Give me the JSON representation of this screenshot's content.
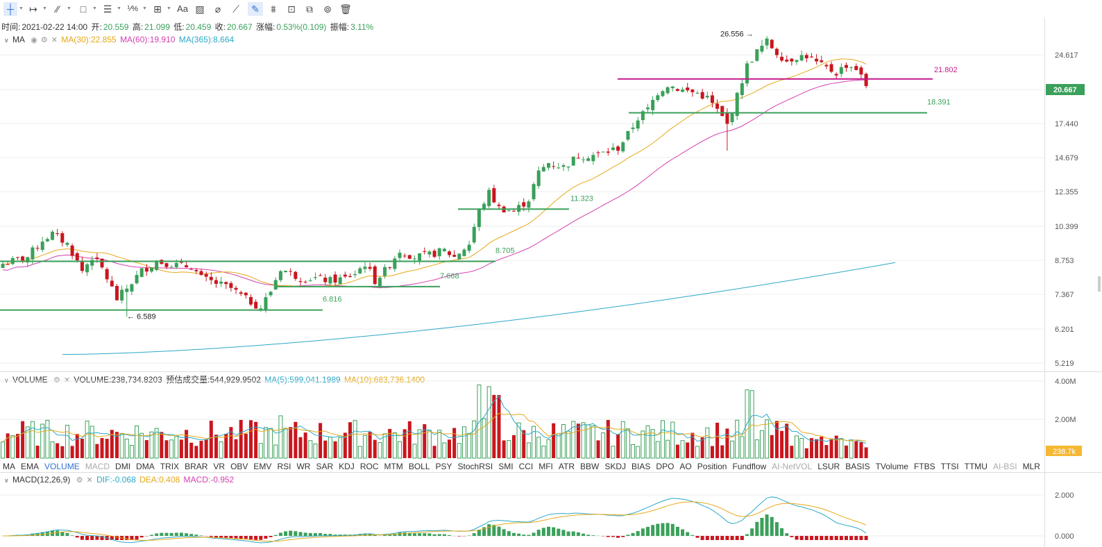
{
  "toolbar": {
    "icons": [
      "crosshair-tool-icon",
      "horizontal-ray-icon",
      "trend-line-icon",
      "rectangle-icon",
      "parallel-lines-icon",
      "fibonacci-icon",
      "measure-icon",
      "text-tool-icon",
      "brush-icon",
      "eraser-icon",
      "ruler-icon",
      "pen-icon",
      "pattern-icon",
      "lock-icon",
      "copy-icon",
      "trash-icon"
    ]
  },
  "ohlc": {
    "time_label": "时间:",
    "time": "2021-02-22 14:00",
    "open_label": "开:",
    "open": "20.559",
    "high_label": "高:",
    "high": "21.099",
    "low_label": "低:",
    "low": "20.459",
    "close_label": "收:",
    "close": "20.667",
    "change_label": "涨幅:",
    "change": "0.53%(0.109)",
    "amp_label": "振幅:",
    "amp": "3.11%"
  },
  "ma_legend": {
    "name": "MA",
    "ma30": "MA(30):22.855",
    "ma60": "MA(60):19.910",
    "ma365": "MA(365):8.664"
  },
  "volume_legend": {
    "name": "VOLUME",
    "volume": "VOLUME:238,734.8203",
    "est": "预估成交量:544,929.9502",
    "ma5": "MA(5):599,041.1989",
    "ma10": "MA(10):683,736.1400"
  },
  "macd_legend": {
    "name": "MACD(12,26,9)",
    "dif": "DIF:-0.068",
    "dea": "DEA:0.408",
    "macd": "MACD:-0.952"
  },
  "indicator_tabs": [
    "MA",
    "EMA",
    "VOLUME",
    "MACD",
    "DMI",
    "DMA",
    "TRIX",
    "BRAR",
    "VR",
    "OBV",
    "EMV",
    "RSI",
    "WR",
    "SAR",
    "KDJ",
    "ROC",
    "MTM",
    "BOLL",
    "PSY",
    "StochRSI",
    "SMI",
    "CCI",
    "MFI",
    "ATR",
    "BBW",
    "SKDJ",
    "BIAS",
    "DPO",
    "AO",
    "Position",
    "Fundflow",
    "AI-NetVOL",
    "LSUR",
    "BASIS",
    "TVolume",
    "FTBS",
    "TTSI",
    "TTMU",
    "AI-BSI",
    "MLR"
  ],
  "active_tab": "VOLUME",
  "colors": {
    "up": "#3aa05a",
    "down": "#c9161e",
    "ma30": "#e6a817",
    "ma60": "#d33fb0",
    "ma365": "#2aa8c8",
    "support": "#3aa05a",
    "resistance": "#c2198a",
    "price_tag": "#3aa05a"
  },
  "chart_data": [
    {
      "type": "candlestick",
      "price_axis_ticks": [
        "24.617",
        "20.667",
        "17.440",
        "14.679",
        "12.355",
        "10.399",
        "8.753",
        "7.367",
        "6.201",
        "5.219"
      ],
      "last_price": "20.667",
      "annotations": {
        "high_marker": "26.556",
        "low_marker": "6.589",
        "level_1": "21.802",
        "level_2": "18.391",
        "level_3": "11.323",
        "level_4": "8.705",
        "level_5": "7.668",
        "level_6": "6.816"
      },
      "series": [
        {
          "name": "MA(30)",
          "last": 22.855
        },
        {
          "name": "MA(60)",
          "last": 19.91
        },
        {
          "name": "MA(365)",
          "last": 8.664
        }
      ]
    },
    {
      "type": "bar",
      "axis_ticks": [
        "4.00M",
        "2.00M"
      ],
      "last_value": "238.7k",
      "series": [
        {
          "name": "VOLUME",
          "last": 238734.8203
        },
        {
          "name": "MA(5)",
          "last": 599041.1989
        },
        {
          "name": "MA(10)",
          "last": 683736.14
        }
      ]
    },
    {
      "type": "line",
      "axis_ticks": [
        "2.000",
        "0.000"
      ],
      "series": [
        {
          "name": "DIF",
          "last": -0.068
        },
        {
          "name": "DEA",
          "last": 0.408
        },
        {
          "name": "MACD",
          "last": -0.952
        }
      ]
    }
  ]
}
